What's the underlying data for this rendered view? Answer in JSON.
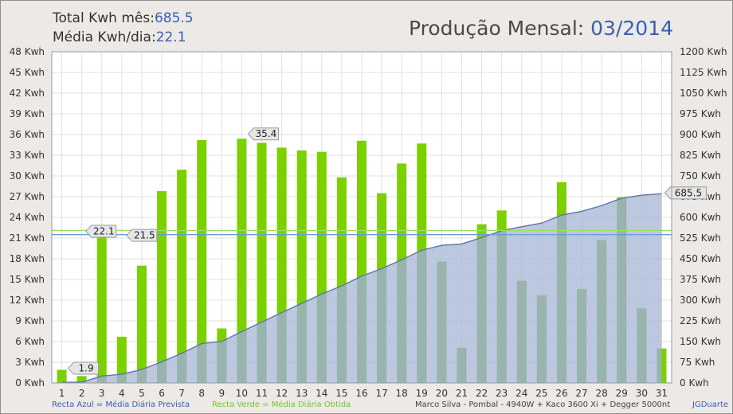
{
  "header": {
    "total_label": "Total Kwh mês:",
    "total_value": "685.5",
    "avg_label": "Média Kwh/dia:",
    "avg_value": "22.1",
    "title_label": "Produção Mensal: ",
    "title_value": "03/2014"
  },
  "footer": {
    "blue_legend": "Recta Azul = Média Diária Prevista",
    "green_legend": "Recta Verde = Média Diária Obtida",
    "system": "Marco Silva - Pombal - 4940W + Kaco 3600 Xi + Degger 5000nt",
    "author": "JGDuarte"
  },
  "colors": {
    "bar": "#7bd000",
    "bar_under_area": "#5ea61f",
    "area_fill": "#a9b9d6",
    "area_line": "#5c75ab",
    "blue_line": "#6b9bd8",
    "green_line": "#9ae25a",
    "plot_bg": "#ffffff",
    "grid": "#e1e1e1"
  },
  "chart_data": {
    "type": "bar",
    "categories": [
      "1",
      "2",
      "3",
      "4",
      "5",
      "6",
      "7",
      "8",
      "9",
      "10",
      "11",
      "12",
      "13",
      "14",
      "15",
      "16",
      "17",
      "18",
      "19",
      "20",
      "21",
      "22",
      "23",
      "24",
      "25",
      "26",
      "27",
      "28",
      "29",
      "30",
      "31"
    ],
    "values": [
      1.9,
      1.0,
      22.1,
      6.7,
      17.0,
      27.8,
      30.9,
      35.2,
      7.9,
      35.4,
      34.8,
      34.1,
      33.7,
      33.5,
      29.8,
      35.1,
      27.5,
      31.8,
      34.7,
      17.6,
      5.1,
      23.0,
      25.0,
      14.8,
      12.7,
      29.1,
      13.6,
      20.7,
      26.9,
      10.8,
      5.0
    ],
    "cumulative": [
      1.9,
      2.9,
      25.0,
      31.7,
      48.7,
      76.5,
      107.4,
      142.6,
      150.5,
      185.9,
      220.7,
      254.8,
      288.5,
      322.0,
      351.8,
      386.9,
      414.4,
      446.2,
      480.9,
      498.5,
      503.6,
      526.6,
      551.6,
      566.4,
      579.1,
      608.2,
      621.8,
      642.5,
      669.4,
      680.2,
      685.5
    ],
    "avg_obtained": 22.1,
    "avg_expected": 21.5,
    "point_labels": [
      {
        "day": 1,
        "text": "1.9"
      },
      {
        "day": 10,
        "text": "35.4"
      }
    ],
    "avg_obtained_label": "22.1",
    "avg_expected_label": "21.5",
    "total_label": "685.5",
    "left_axis": {
      "min": 0,
      "max": 48,
      "step": 3,
      "tick_labels": [
        "0 Kwh",
        "3 Kwh",
        "6 Kwh",
        "9 Kwh",
        "12 Kwh",
        "15 Kwh",
        "18 Kwh",
        "21 Kwh",
        "24 Kwh",
        "27 Kwh",
        "30 Kwh",
        "33 Kwh",
        "36 Kwh",
        "39 Kwh",
        "42 Kwh",
        "45 Kwh",
        "48 Kwh"
      ]
    },
    "right_axis": {
      "min": 0,
      "max": 1200,
      "step": 75,
      "tick_labels": [
        "0 Kwh",
        "75 Kwh",
        "150 Kwh",
        "225 Kwh",
        "300 Kwh",
        "375 Kwh",
        "450 Kwh",
        "525 Kwh",
        "600 Kwh",
        "675 Kwh",
        "750 Kwh",
        "825 Kwh",
        "900 Kwh",
        "975 Kwh",
        "1050 Kwh",
        "1125 Kwh",
        "1200 Kwh"
      ]
    },
    "grid": true
  }
}
